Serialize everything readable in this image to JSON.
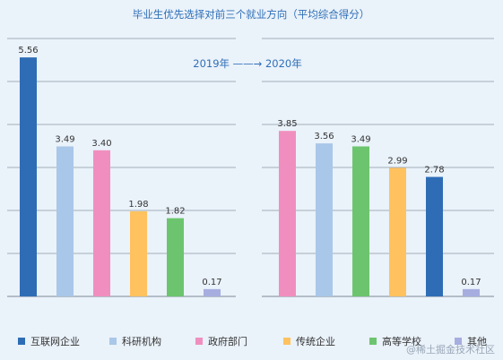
{
  "chart_data": {
    "type": "bar",
    "title": "毕业生优先选择对前三个就业方向（平均综合得分）",
    "annotation": "2019年 ——→ 2020年",
    "grid": true,
    "legend_position": "bottom",
    "ylim": [
      0,
      6
    ],
    "series_colors": {
      "互联网企业": "#2e6db5",
      "科研机构": "#a9c7e8",
      "政府部门": "#f08fbf",
      "传统企业": "#ffc25f",
      "高等学校": "#6cc56e",
      "其他": "#a6aee0"
    },
    "groups": [
      {
        "label": "2019年",
        "bars": [
          {
            "category": "互联网企业",
            "value": 5.56,
            "label": "5.56"
          },
          {
            "category": "科研机构",
            "value": 3.49,
            "label": "3.49"
          },
          {
            "category": "政府部门",
            "value": 3.4,
            "label": "3.40"
          },
          {
            "category": "传统企业",
            "value": 1.98,
            "label": "1.98"
          },
          {
            "category": "高等学校",
            "value": 1.82,
            "label": "1.82"
          },
          {
            "category": "其他",
            "value": 0.17,
            "label": "0.17"
          }
        ]
      },
      {
        "label": "2020年",
        "bars": [
          {
            "category": "政府部门",
            "value": 3.85,
            "label": "3.85"
          },
          {
            "category": "科研机构",
            "value": 3.56,
            "label": "3.56"
          },
          {
            "category": "高等学校",
            "value": 3.49,
            "label": "3.49"
          },
          {
            "category": "传统企业",
            "value": 2.99,
            "label": "2.99"
          },
          {
            "category": "互联网企业",
            "value": 2.78,
            "label": "2.78"
          },
          {
            "category": "其他",
            "value": 0.17,
            "label": "0.17"
          }
        ]
      }
    ],
    "legend": [
      "互联网企业",
      "科研机构",
      "政府部门",
      "传统企业",
      "高等学校",
      "其他"
    ]
  },
  "watermark": "@稀土掘金技术社区"
}
